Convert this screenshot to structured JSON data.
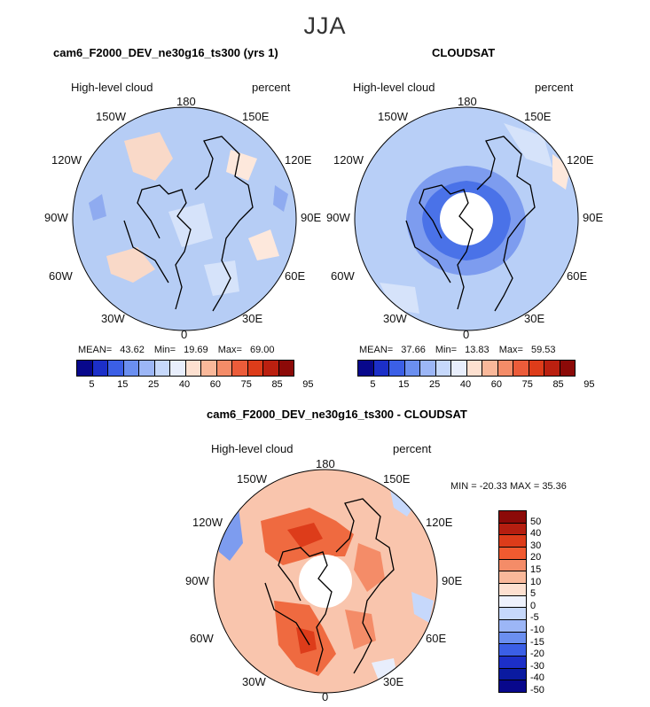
{
  "figure": {
    "title": "JJA",
    "variable_label": "High-level cloud",
    "units_label": "percent"
  },
  "panels": {
    "model": {
      "title": "cam6_F2000_DEV_ne30g16_ts300 (yrs 1)",
      "mean_label": "MEAN=",
      "mean": "43.62",
      "min_label": "Min=",
      "min": "19.69",
      "max_label": "Max=",
      "max": "69.00"
    },
    "obs": {
      "title": "CLOUDSAT",
      "mean_label": "MEAN=",
      "mean": "37.66",
      "min_label": "Min=",
      "min": "13.83",
      "max_label": "Max=",
      "max": "59.53"
    },
    "diff": {
      "title": "cam6_F2000_DEV_ne30g16_ts300 - CLOUDSAT",
      "minmax_text": "MIN = -20.33 MAX =   35.36"
    }
  },
  "longitude_labels": [
    "180",
    "150E",
    "120E",
    "90E",
    "60E",
    "30E",
    "0",
    "30W",
    "60W",
    "90W",
    "120W",
    "150W"
  ],
  "colorbar_abs": {
    "colors": [
      "#08088c",
      "#1c2fc8",
      "#3b5fe6",
      "#6b8ff0",
      "#9cb6f6",
      "#c6d8fb",
      "#e8eefc",
      "#fde0d0",
      "#f9b89a",
      "#f48c68",
      "#ec5c3a",
      "#dd3c1a",
      "#bb2010",
      "#8c0a08"
    ],
    "tick_labels": [
      "5",
      "15",
      "25",
      "40",
      "60",
      "75",
      "85",
      "95"
    ]
  },
  "colorbar_diff": {
    "colors": [
      "#8c0a08",
      "#b51e10",
      "#dd3c1a",
      "#f05a30",
      "#f48c68",
      "#f9b89a",
      "#fde0d0",
      "#eef2fd",
      "#c6d8fb",
      "#9cb6f6",
      "#6b8ff0",
      "#3b5fe6",
      "#1c2fc8",
      "#0a1aa0",
      "#08088c"
    ],
    "tick_labels": [
      "50",
      "40",
      "30",
      "20",
      "15",
      "10",
      "5",
      "0",
      "-5",
      "-10",
      "-15",
      "-20",
      "-30",
      "-40",
      "-50"
    ]
  },
  "colors": {
    "model_field": "#b6cdf5",
    "obs_field": "#b8cff7",
    "diff_field": "#f9c5ad",
    "coast": "#000000"
  },
  "chart_data": {
    "type": "polar_map",
    "projection": "north polar stereographic",
    "season": "JJA",
    "variable": "High-level cloud",
    "units": "percent",
    "panels": [
      {
        "name": "cam6_F2000_DEV_ne30g16_ts300 (yrs 1)",
        "mean": 43.62,
        "min": 19.69,
        "max": 69.0,
        "levels": [
          5,
          10,
          15,
          20,
          25,
          30,
          40,
          50,
          60,
          70,
          75,
          80,
          85,
          90,
          95
        ]
      },
      {
        "name": "CLOUDSAT",
        "mean": 37.66,
        "min": 13.83,
        "max": 59.53,
        "levels": [
          5,
          10,
          15,
          20,
          25,
          30,
          40,
          50,
          60,
          70,
          75,
          80,
          85,
          90,
          95
        ]
      },
      {
        "name": "cam6_F2000_DEV_ne30g16_ts300 - CLOUDSAT",
        "min": -20.33,
        "max": 35.36,
        "levels": [
          -50,
          -40,
          -30,
          -20,
          -15,
          -10,
          -5,
          0,
          5,
          10,
          15,
          20,
          30,
          40,
          50
        ]
      }
    ]
  }
}
